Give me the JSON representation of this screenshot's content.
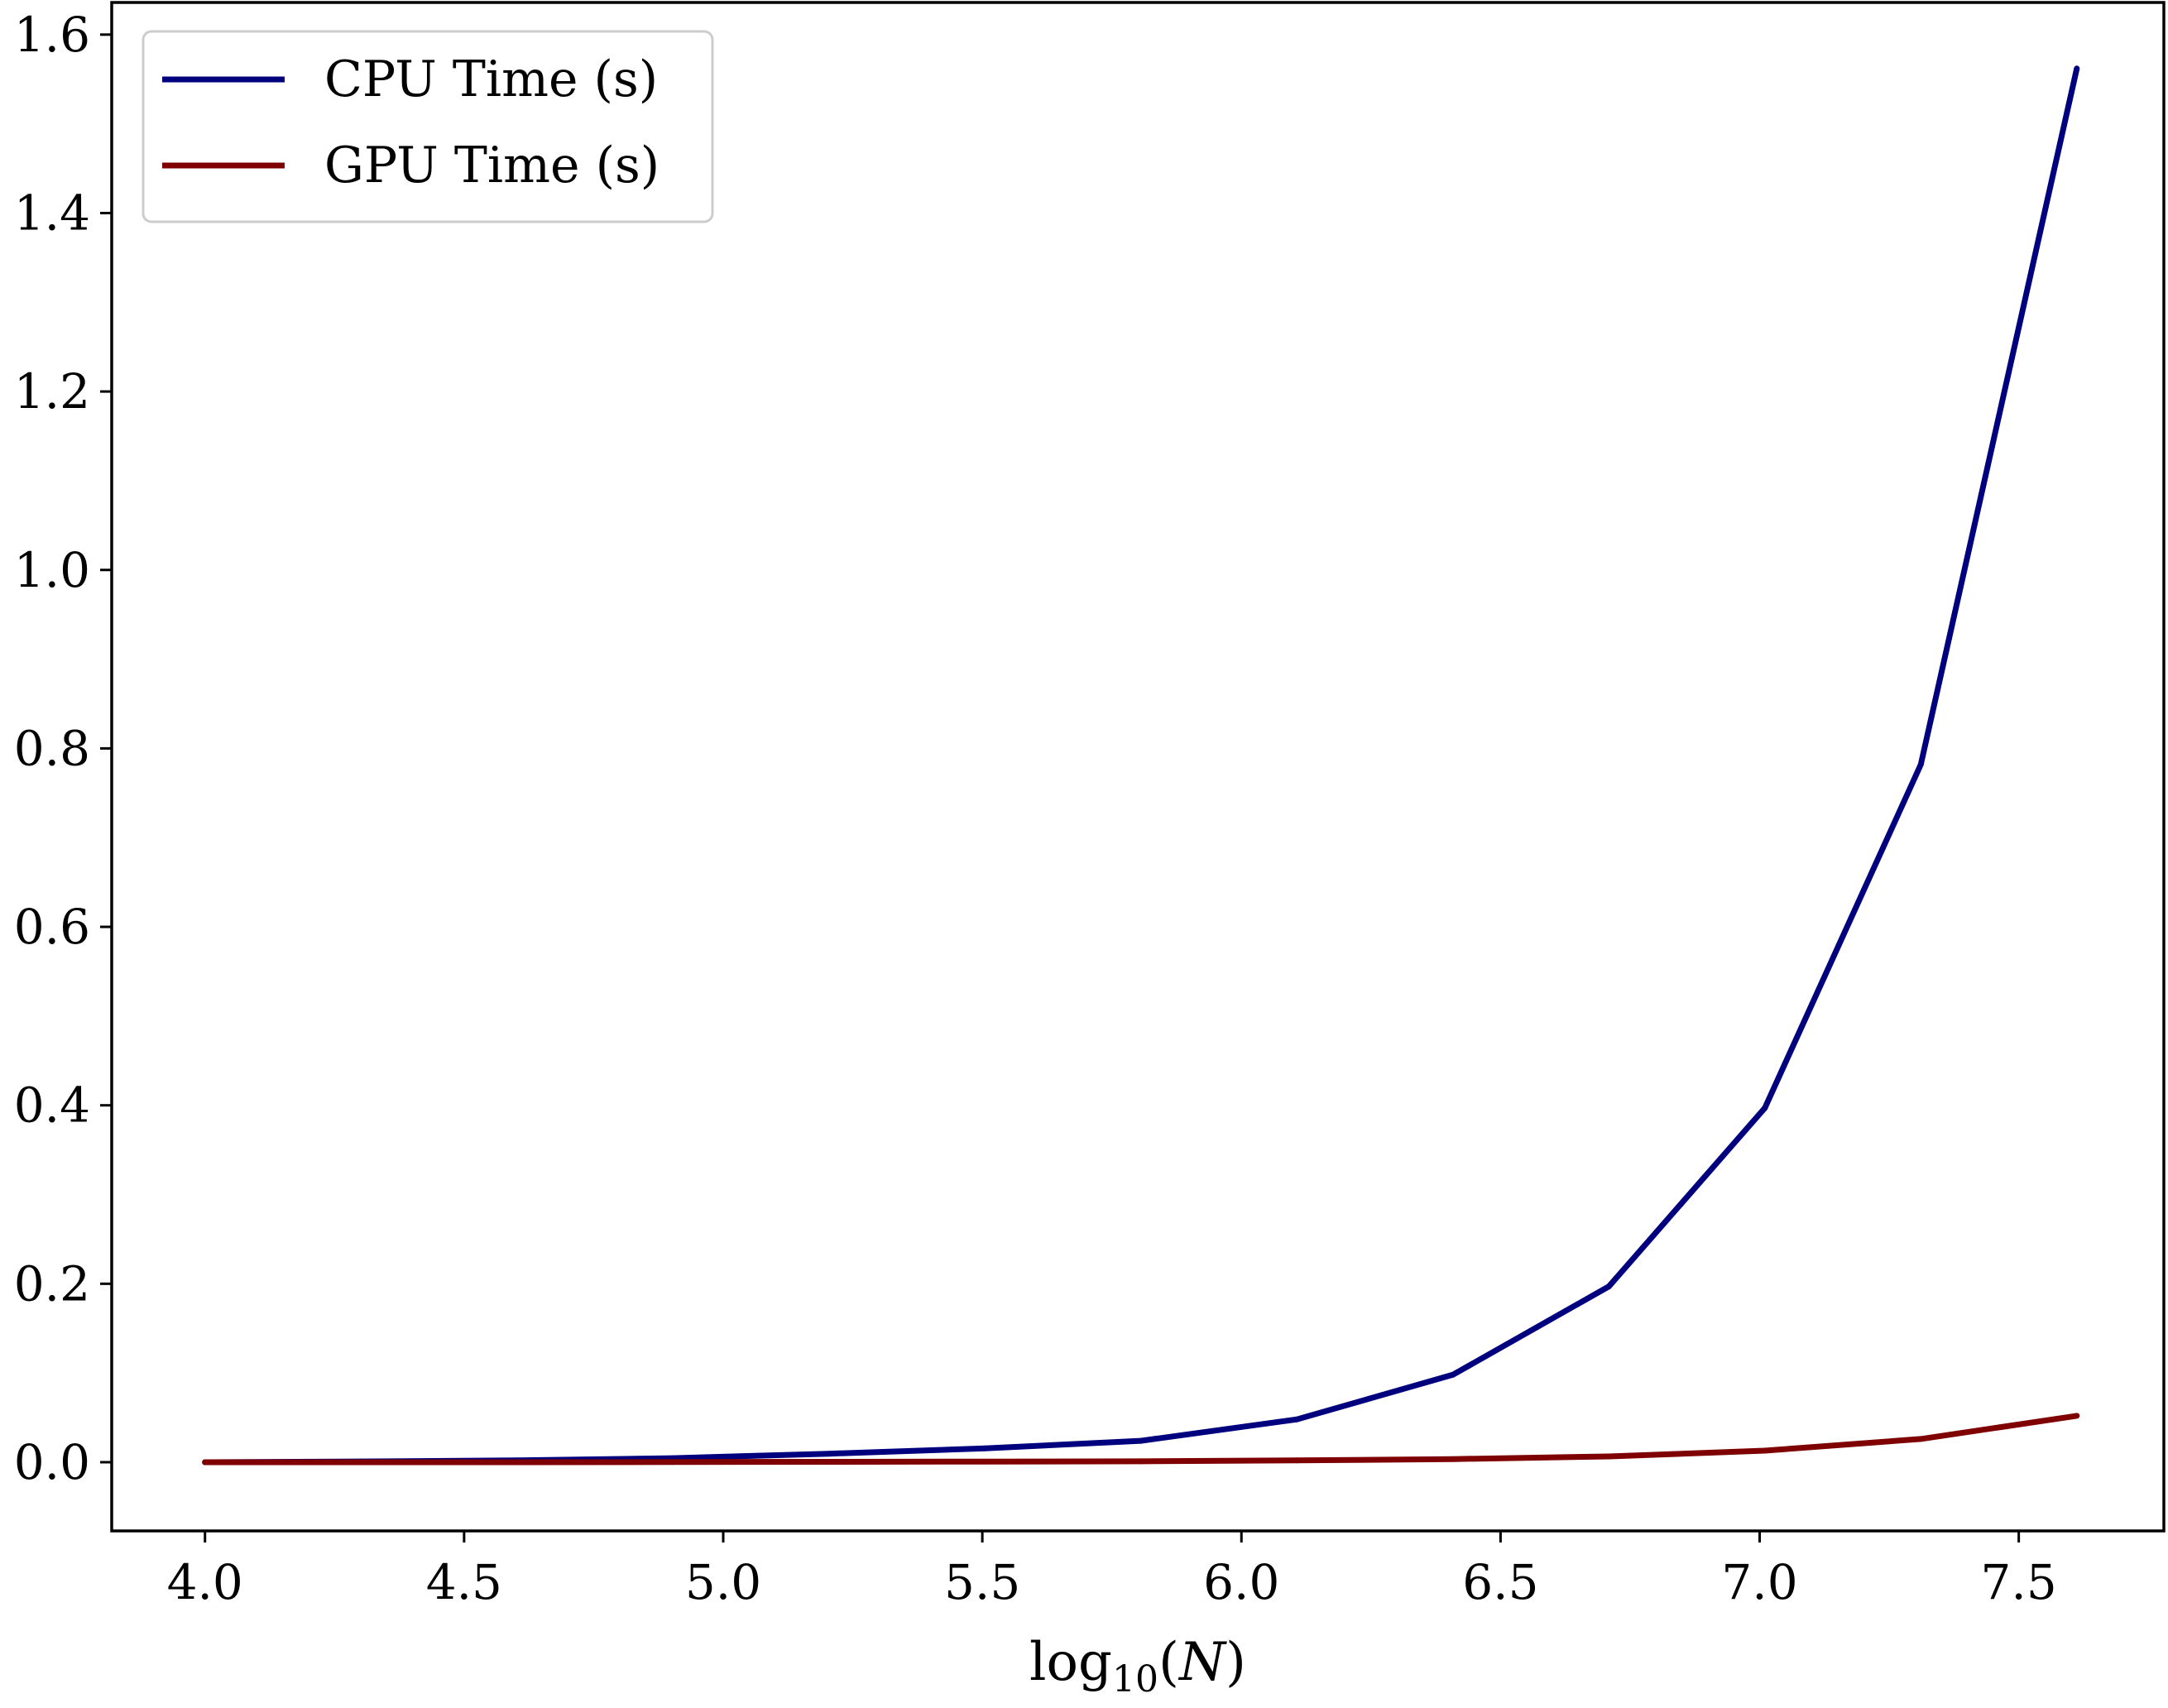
{
  "chart_data": {
    "type": "line",
    "title": "",
    "xlabel": "log10(N)",
    "xlabel_parts": {
      "base": "log",
      "sub": "10",
      "arg_open": "(",
      "arg": "N",
      "arg_close": ")"
    },
    "ylabel": "",
    "xlim": [
      3.82,
      7.78
    ],
    "ylim": [
      -0.077,
      1.636
    ],
    "x_ticks": [
      4.0,
      4.5,
      5.0,
      5.5,
      6.0,
      6.5,
      7.0,
      7.5
    ],
    "x_tick_labels": [
      "4.0",
      "4.5",
      "5.0",
      "5.5",
      "6.0",
      "6.5",
      "7.0",
      "7.5"
    ],
    "y_ticks": [
      0.0,
      0.2,
      0.4,
      0.6,
      0.8,
      1.0,
      1.2,
      1.4,
      1.6
    ],
    "y_tick_labels": [
      "0.0",
      "0.2",
      "0.4",
      "0.6",
      "0.8",
      "1.0",
      "1.2",
      "1.4",
      "1.6"
    ],
    "grid": false,
    "legend_position": "top-left",
    "series": [
      {
        "name": "CPU Time (s)",
        "color": "#00007f",
        "x": [
          4.0,
          4.301,
          4.602,
          4.903,
          5.204,
          5.505,
          5.806,
          6.107,
          6.408,
          6.709,
          7.01,
          7.311,
          7.612
        ],
        "y": [
          0.0,
          0.0008,
          0.002,
          0.0045,
          0.0095,
          0.0155,
          0.024,
          0.048,
          0.098,
          0.197,
          0.397,
          0.782,
          1.562
        ]
      },
      {
        "name": "GPU Time (s)",
        "color": "#7f0000",
        "x": [
          4.0,
          4.301,
          4.602,
          4.903,
          5.204,
          5.505,
          5.806,
          6.107,
          6.408,
          6.709,
          7.01,
          7.311,
          7.612
        ],
        "y": [
          0.0,
          0.0,
          0.0,
          0.0002,
          0.0004,
          0.0007,
          0.001,
          0.002,
          0.0035,
          0.0065,
          0.013,
          0.026,
          0.052
        ]
      }
    ]
  }
}
